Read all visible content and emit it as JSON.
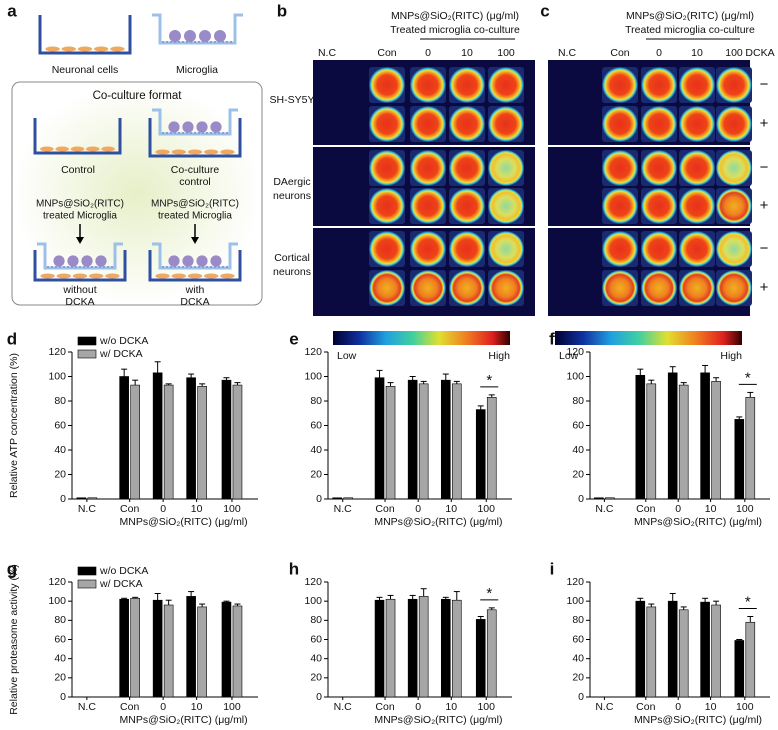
{
  "panel_a": {
    "label": "a",
    "neuronal": "Neuronal cells",
    "microglia": "Microglia",
    "format_title": "Co-culture format",
    "control": "Control",
    "coculture_control": [
      "Co-culture",
      "control"
    ],
    "treated_left": [
      "MNPs@SiO₂(RITC)",
      "treated Microglia"
    ],
    "treated_right": [
      "MNPs@SiO₂(RITC)",
      "treated Microglia"
    ],
    "without": [
      "without",
      "DCKA"
    ],
    "with": [
      "with",
      "DCKA"
    ]
  },
  "panel_b": {
    "label": "b",
    "header": [
      "MNPs@SiO₂(RITC) (μg/ml)",
      "Treated microglia co-culture"
    ],
    "columns": [
      "N.C",
      "Con",
      "0",
      "10",
      "100"
    ],
    "rows": [
      [
        "SH-SY5Y"
      ],
      [
        "DAergic",
        "neurons"
      ],
      [
        "Cortical",
        "neurons"
      ]
    ],
    "colorbar": [
      "Low",
      "High"
    ]
  },
  "panel_c": {
    "label": "c",
    "header": [
      "MNPs@SiO₂(RITC) (μg/ml)",
      "Treated microglia co-culture"
    ],
    "columns": [
      "N.C",
      "Con",
      "0",
      "10",
      "100"
    ],
    "dcka": "DCKA",
    "signs": [
      "−",
      "+",
      "−",
      "+",
      "−",
      "+"
    ],
    "colorbar": [
      "Low",
      "High"
    ]
  },
  "chart_data": [
    {
      "type": "bar",
      "label": "d",
      "y_label": "Relative ATP concentration (%)",
      "x_label": "MNPs@SiO₂(RITC) (μg/ml)",
      "categories": [
        "N.C",
        "Con",
        "0",
        "10",
        "100"
      ],
      "ylim": [
        0,
        120
      ],
      "yticks": [
        0,
        20,
        40,
        60,
        80,
        100,
        120
      ],
      "legend": "upper left",
      "series": [
        {
          "name": "w/o DCKA",
          "color": "#000000",
          "values": [
            1,
            100,
            103,
            99,
            97
          ],
          "errors": [
            0,
            6,
            9,
            3,
            2
          ]
        },
        {
          "name": "w/ DCKA",
          "color": "#a6a6a6",
          "values": [
            1,
            93,
            93,
            92,
            93
          ],
          "errors": [
            0,
            4,
            1,
            2,
            2
          ]
        }
      ]
    },
    {
      "type": "bar",
      "label": "e",
      "x_label": "MNPs@SiO₂(RITC) (μg/ml)",
      "categories": [
        "N.C",
        "Con",
        "0",
        "10",
        "100"
      ],
      "ylim": [
        0,
        120
      ],
      "yticks": [
        0,
        20,
        40,
        60,
        80,
        100,
        120
      ],
      "series": [
        {
          "color": "#000000",
          "values": [
            1,
            99,
            97,
            97,
            73
          ],
          "errors": [
            0,
            6,
            3,
            5,
            3
          ]
        },
        {
          "color": "#a6a6a6",
          "values": [
            1,
            92,
            94,
            94,
            83
          ],
          "errors": [
            0,
            3,
            2,
            2,
            2
          ]
        }
      ],
      "significance": [
        {
          "category": "100",
          "text": "*"
        }
      ]
    },
    {
      "type": "bar",
      "label": "f",
      "x_label": "MNPs@SiO₂(RITC) (μg/ml)",
      "categories": [
        "N.C",
        "Con",
        "0",
        "10",
        "100"
      ],
      "ylim": [
        0,
        120
      ],
      "yticks": [
        0,
        20,
        40,
        60,
        80,
        100,
        120
      ],
      "series": [
        {
          "color": "#000000",
          "values": [
            1,
            101,
            103,
            103,
            65
          ],
          "errors": [
            0,
            5,
            5,
            6,
            2
          ]
        },
        {
          "color": "#a6a6a6",
          "values": [
            1,
            94,
            93,
            96,
            83
          ],
          "errors": [
            0,
            3,
            2,
            3,
            4
          ]
        }
      ],
      "significance": [
        {
          "category": "100",
          "text": "*"
        }
      ]
    },
    {
      "type": "bar",
      "label": "g",
      "y_label": "Relative proteasome activity (%)",
      "x_label": "MNPs@SiO₂(RITC) (μg/ml)",
      "categories": [
        "N.C",
        "Con",
        "0",
        "10",
        "100"
      ],
      "ylim": [
        0,
        120
      ],
      "yticks": [
        0,
        20,
        40,
        60,
        80,
        100,
        120
      ],
      "legend": "upper left",
      "series": [
        {
          "name": "w/o DCKA",
          "color": "#000000",
          "values": [
            0,
            102,
            101,
            105,
            99
          ],
          "errors": [
            0,
            1,
            7,
            5,
            1
          ]
        },
        {
          "name": "w/ DCKA",
          "color": "#a6a6a6",
          "values": [
            0,
            103,
            96,
            94,
            95
          ],
          "errors": [
            0,
            1,
            5,
            3,
            2
          ]
        }
      ]
    },
    {
      "type": "bar",
      "label": "h",
      "x_label": "MNPs@SiO₂(RITC) (μg/ml)",
      "categories": [
        "N.C",
        "Con",
        "0",
        "10",
        "100"
      ],
      "ylim": [
        0,
        120
      ],
      "yticks": [
        0,
        20,
        40,
        60,
        80,
        100,
        120
      ],
      "series": [
        {
          "color": "#000000",
          "values": [
            0,
            101,
            102,
            102,
            81
          ],
          "errors": [
            0,
            3,
            4,
            2,
            3
          ]
        },
        {
          "color": "#a6a6a6",
          "values": [
            0,
            102,
            105,
            101,
            91
          ],
          "errors": [
            0,
            4,
            8,
            9,
            2
          ]
        }
      ],
      "significance": [
        {
          "category": "100",
          "text": "*"
        }
      ]
    },
    {
      "type": "bar",
      "label": "i",
      "x_label": "MNPs@SiO₂(RITC) (μg/ml)",
      "categories": [
        "N.C",
        "Con",
        "0",
        "10",
        "100"
      ],
      "ylim": [
        0,
        120
      ],
      "yticks": [
        0,
        20,
        40,
        60,
        80,
        100,
        120
      ],
      "series": [
        {
          "color": "#000000",
          "values": [
            0,
            100,
            100,
            99,
            59
          ],
          "errors": [
            0,
            3,
            8,
            4,
            1
          ]
        },
        {
          "color": "#a6a6a6",
          "values": [
            0,
            94,
            91,
            96,
            78
          ],
          "errors": [
            0,
            3,
            3,
            4,
            6
          ]
        }
      ],
      "significance": [
        {
          "category": "100",
          "text": "*"
        }
      ]
    }
  ]
}
